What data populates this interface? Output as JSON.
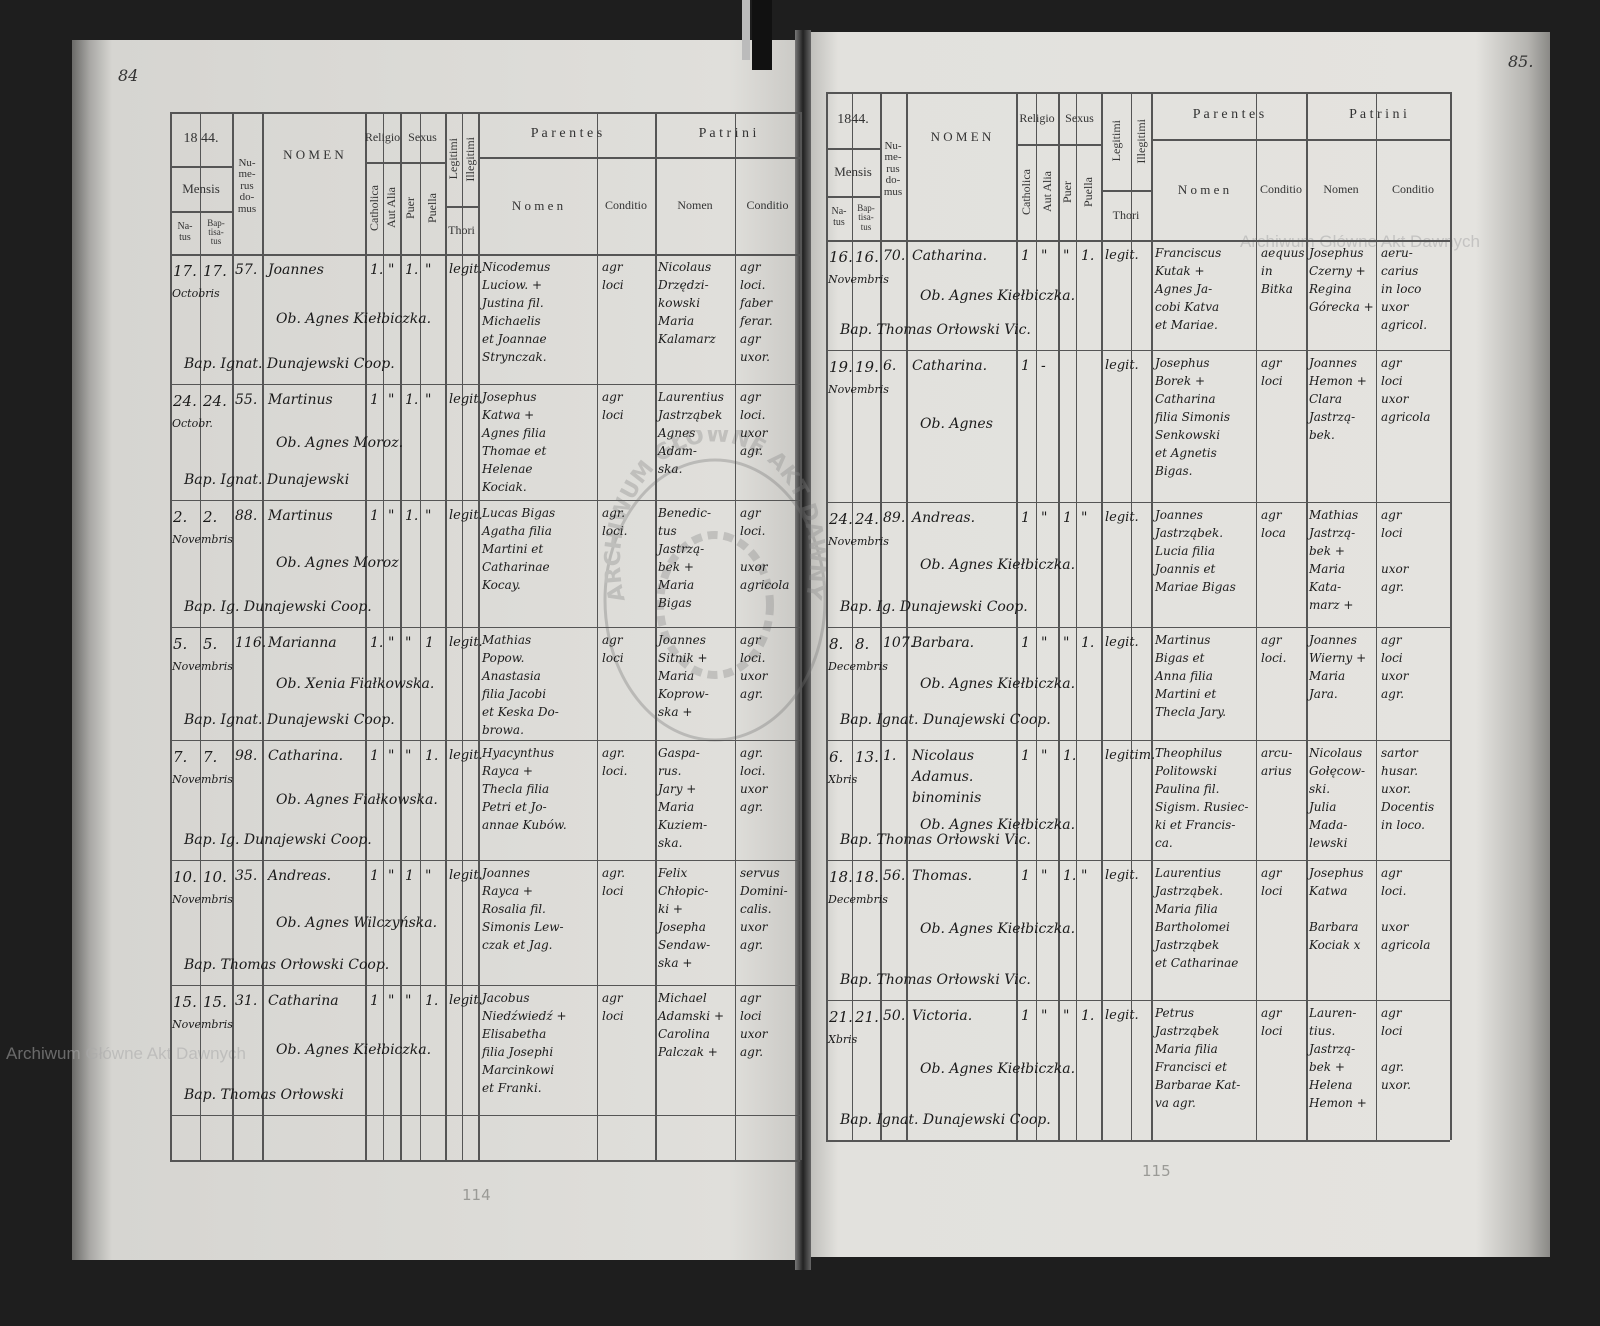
{
  "page_numbers": {
    "left": "84",
    "right": "85."
  },
  "pencil_numbers": {
    "left": "114",
    "right": "115"
  },
  "watermark": "Archiwum Główne Akt Dawnych",
  "stamp_text": "ARCHIWUM GŁÓWNE AKT DAWNYCH",
  "header": {
    "year_left": "18 44.",
    "year_right": "1844.",
    "mensis": "Mensis",
    "natus": "Na-\ntus",
    "baptisatus": "Bap-\ntisa-\ntus",
    "numerus_domus": "Nu-\nme-\nrus\ndo-\nmus",
    "nomen": "N O M E N",
    "religio": "Religio",
    "catholica": "Catholica",
    "aut_alia": "Aut Alia",
    "sexus": "Sexus",
    "puer": "Puer",
    "puella": "Puella",
    "legitimi": "Legitimi",
    "illegitimi": "Illegitimi",
    "thori": "Thori",
    "parentes": "P a r e n t e s",
    "parentes_nomen": "N o m e n",
    "parentes_conditio": "Conditio",
    "patrini": "P a t r i n i",
    "patrini_nomen": "Nomen",
    "patrini_conditio": "Conditio"
  },
  "left_entries": [
    {
      "natus": "17.",
      "baptisatus": "17.",
      "mensis": "Octobris",
      "domus": "57.",
      "nomen": "Joannes",
      "marks": [
        "1.",
        "\"",
        "1.",
        "\""
      ],
      "legit": "legit.",
      "obstetrix": "Ob. Agnes Kiełbiczka.",
      "baptizans": "Bap. Ignat. Dunajewski Coop.",
      "parentes": "Nicodemus\nLuciow. +\nJustina fil.\nMichaelis\net Joannae\nStrynczak.",
      "parentes_conditio": "agr\nloci",
      "patrini": "Nicolaus\nDrzędzi-\nkowski\nMaria\nKalamarz",
      "patrini_conditio": "agr\nloci.\nfaber\nferar.\nagr\nuxor."
    },
    {
      "natus": "24.",
      "baptisatus": "24.",
      "mensis": "Octobr.",
      "domus": "55.",
      "nomen": "Martinus",
      "marks": [
        "1",
        "\"",
        "1.",
        "\""
      ],
      "legit": "legit.",
      "obstetrix": "Ob. Agnes Moroz.",
      "baptizans": "Bap. Ignat. Dunajewski",
      "parentes": "Josephus\nKatwa +\nAgnes filia\nThomae et\nHelenae\nKociak.",
      "parentes_conditio": "agr\nloci",
      "patrini": "Laurentius\nJastrząbek\nAgnes\nAdam-\nska.",
      "patrini_conditio": "agr\nloci.\nuxor\nagr."
    },
    {
      "natus": "2.",
      "baptisatus": "2.",
      "mensis": "Novembris",
      "domus": "88.",
      "nomen": "Martinus",
      "marks": [
        "1",
        "\"",
        "1.",
        "\""
      ],
      "legit": "legit.",
      "obstetrix": "Ob. Agnes Moroz",
      "baptizans": "Bap. Ig. Dunajewski Coop.",
      "parentes": "Lucas Bigas\nAgatha filia\nMartini et\nCatharinae\nKocay.",
      "parentes_conditio": "agr.\nloci.",
      "patrini": "Benedic-\ntus\nJastrzą-\nbek +\nMaria\nBigas",
      "patrini_conditio": "agr\nloci.\n\nuxor\nagricola"
    },
    {
      "natus": "5.",
      "baptisatus": "5.",
      "mensis": "Novembris",
      "domus": "116.",
      "nomen": "Marianna",
      "marks": [
        "1.",
        "\"",
        "\"",
        "1"
      ],
      "legit": "legit.",
      "obstetrix": "Ob. Xenia Fiałkowska.",
      "baptizans": "Bap. Ignat. Dunajewski Coop.",
      "parentes": "Mathias\nPopow.\nAnastasia\nfilia Jacobi\net Keska Do-\nbrowa.",
      "parentes_conditio": "agr\nloci",
      "patrini": "Joannes\nSitnik +\nMaria\nKoprow-\nska +",
      "patrini_conditio": "agr\nloci.\nuxor\nagr."
    },
    {
      "natus": "7.",
      "baptisatus": "7.",
      "mensis": "Novembris",
      "domus": "98.",
      "nomen": "Catharina.",
      "marks": [
        "1",
        "\"",
        "\"",
        "1."
      ],
      "legit": "legit.",
      "obstetrix": "Ob. Agnes Fiałkowska.",
      "baptizans": "Bap. Ig. Dunajewski Coop.",
      "parentes": "Hyacynthus\nRayca +\nThecla filia\nPetri et Jo-\nannae Kubów.",
      "parentes_conditio": "agr.\nloci.",
      "patrini": "Gaspa-\nrus.\nJary +\nMaria\nKuziem-\nska.",
      "patrini_conditio": "agr.\nloci.\nuxor\nagr."
    },
    {
      "natus": "10.",
      "baptisatus": "10.",
      "mensis": "Novembris",
      "domus": "35.",
      "nomen": "Andreas.",
      "marks": [
        "1",
        "\"",
        "1",
        "\""
      ],
      "legit": "legit.",
      "obstetrix": "Ob. Agnes Wilczyńska.",
      "baptizans": "Bap. Thomas Orłowski Coop.",
      "parentes": "Joannes\nRayca +\nRosalia fil.\nSimonis Lew-\nczak et Jag.",
      "parentes_conditio": "agr.\nloci",
      "patrini": "Felix\nChłopic-\nki +\nJosepha\nSendaw-\nska +",
      "patrini_conditio": "servus\nDomini-\ncalis.\nuxor\nagr."
    },
    {
      "natus": "15.",
      "baptisatus": "15.",
      "mensis": "Novembris",
      "domus": "31.",
      "nomen": "Catharina",
      "marks": [
        "1",
        "\"",
        "\"",
        "1."
      ],
      "legit": "legit.",
      "obstetrix": "Ob. Agnes Kiełbiczka.",
      "baptizans": "Bap. Thomas Orłowski",
      "parentes": "Jacobus\nNiedźwiedź +\nElisabetha\nfilia Josephi\nMarcinkowi\net Franki.",
      "parentes_conditio": "agr\nloci",
      "patrini": "Michael\nAdamski +\nCarolina\nPalczak +",
      "patrini_conditio": "agr\nloci\nuxor\nagr."
    }
  ],
  "right_entries": [
    {
      "natus": "16.",
      "baptisatus": "16.",
      "mensis": "Novembris",
      "domus": "70.",
      "nomen": "Catharina.",
      "marks": [
        "1",
        "\"",
        "\"",
        "1."
      ],
      "legit": "legit.",
      "obstetrix": "Ob. Agnes Kiełbiczka.",
      "baptizans": "Bap. Thomas Orłowski Vic.",
      "parentes": "Franciscus\nKutak +\nAgnes Ja-\ncobi Katva\net Mariae.",
      "parentes_conditio": "aequus\nin\nBitka",
      "patrini": "Josephus\nCzerny +\nRegina\nGórecka +",
      "patrini_conditio": "aeru-\ncarius\nin loco\nuxor\nagricol."
    },
    {
      "natus": "19.",
      "baptisatus": "19.",
      "mensis": "Novembris",
      "domus": "6.",
      "nomen": "Catharina.",
      "marks": [
        "1",
        "-",
        "",
        ""
      ],
      "legit": "legit.",
      "obstetrix": "Ob. Agnes",
      "baptizans": "",
      "parentes": "Josephus\nBorek +\nCatharina\nfilia Simonis\nSenkowski\net Agnetis\nBigas.",
      "parentes_conditio": "agr\nloci",
      "patrini": "Joannes\nHemon +\nClara\nJastrzą-\nbek.",
      "patrini_conditio": "agr\nloci\nuxor\nagricola"
    },
    {
      "natus": "24.",
      "baptisatus": "24.",
      "mensis": "Novembris",
      "domus": "89.",
      "nomen": "Andreas.",
      "marks": [
        "1",
        "\"",
        "1",
        "\""
      ],
      "legit": "legit.",
      "obstetrix": "Ob. Agnes Kiełbiczka.",
      "baptizans": "Bap. Ig. Dunajewski Coop.",
      "parentes": "Joannes\nJastrząbek.\nLucia filia\nJoannis et\nMariae Bigas",
      "parentes_conditio": "agr\nloca",
      "patrini": "Mathias\nJastrzą-\nbek +\nMaria\nKata-\nmarz +",
      "patrini_conditio": "agr\nloci\n\nuxor\nagr."
    },
    {
      "natus": "8.",
      "baptisatus": "8.",
      "mensis": "Decembris",
      "domus": "107.",
      "nomen": "Barbara.",
      "marks": [
        "1",
        "\"",
        "\"",
        "1."
      ],
      "legit": "legit.",
      "obstetrix": "Ob. Agnes Kiełbiczka.",
      "baptizans": "Bap. Ignat. Dunajewski Coop.",
      "parentes": "Martinus\nBigas et\nAnna filia\nMartini et\nThecla Jary.",
      "parentes_conditio": "agr\nloci.",
      "patrini": "Joannes\nWierny +\nMaria\nJara.",
      "patrini_conditio": "agr\nloci\nuxor\nagr."
    },
    {
      "natus": "6.",
      "baptisatus": "13.",
      "mensis": "Xbris",
      "domus": "1.",
      "nomen": "Nicolaus\nAdamus.\nbinominis",
      "marks": [
        "1",
        "\"",
        "1.",
        ""
      ],
      "legit": "legitim.",
      "obstetrix": "Ob. Agnes Kiełbiczka.",
      "baptizans": "Bap. Thomas Orłowski Vic.",
      "parentes": "Theophilus\nPolitowski\nPaulina fil.\nSigism. Rusiec-\nki et Francis-\nca.",
      "parentes_conditio": "arcu-\narius",
      "patrini": "Nicolaus\nGołęcow-\nski.\nJulia\nMada-\nlewski",
      "patrini_conditio": "sartor\nhusar.\nuxor.\nDocentis\nin loco."
    },
    {
      "natus": "18.",
      "baptisatus": "18.",
      "mensis": "Decembris",
      "domus": "56.",
      "nomen": "Thomas.",
      "marks": [
        "1",
        "\"",
        "1.",
        "\""
      ],
      "legit": "legit.",
      "obstetrix": "Ob. Agnes Kiełbiczka.",
      "baptizans": "Bap. Thomas Orłowski Vic.",
      "parentes": "Laurentius\nJastrząbek.\nMaria filia\nBartholomei\nJastrząbek\net Catharinae",
      "parentes_conditio": "agr\nloci",
      "patrini": "Josephus\nKatwa\n\nBarbara\nKociak x",
      "patrini_conditio": "agr\nloci.\n\nuxor\nagricola"
    },
    {
      "natus": "21.",
      "baptisatus": "21.",
      "mensis": "Xbris",
      "domus": "50.",
      "nomen": "Victoria.",
      "marks": [
        "1",
        "\"",
        "\"",
        "1."
      ],
      "legit": "legit.",
      "obstetrix": "Ob. Agnes Kiełbiczka.",
      "baptizans": "Bap. Ignat. Dunajewski Coop.",
      "parentes": "Petrus\nJastrząbek\nMaria filia\nFrancisci et\nBarbarae Kat-\nva agr.",
      "parentes_conditio": "agr\nloci",
      "patrini": "Lauren-\ntius.\nJastrzą-\nbek +\nHelena\nHemon +",
      "patrini_conditio": "agr\nloci\n\nagr.\nuxor."
    }
  ]
}
